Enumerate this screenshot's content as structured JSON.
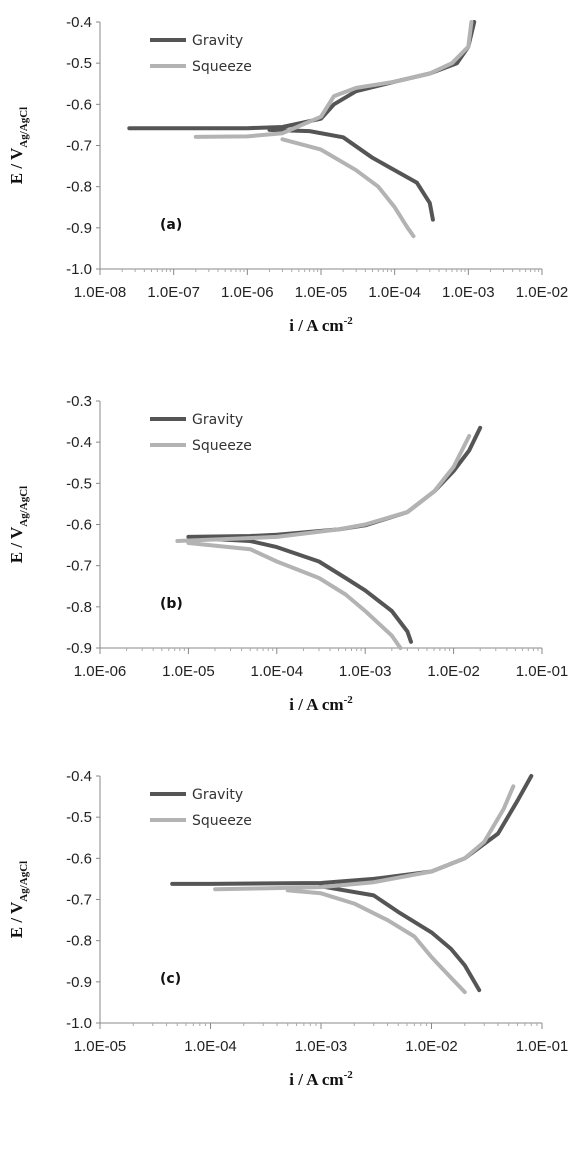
{
  "chart_data": [
    {
      "type": "line",
      "panel_label": "(a)",
      "xscale": "log",
      "xlim": [
        1e-08,
        0.01
      ],
      "ylim": [
        -1.0,
        -0.4
      ],
      "xticks": [
        "1.0E-08",
        "1.0E-07",
        "1.0E-06",
        "1.0E-05",
        "1.0E-04",
        "1.0E-03",
        "1.0E-02"
      ],
      "yticks": [
        "-0.4",
        "-0.5",
        "-0.6",
        "-0.7",
        "-0.8",
        "-0.9",
        "-1.0"
      ],
      "xlabel": {
        "main": "i / A cm",
        "sup": "-2"
      },
      "ylabel": {
        "main": "E / V",
        "sub": "Ag/AgCl"
      },
      "legend_position": "top-left",
      "series": [
        {
          "name": "Gravity",
          "color": "#555555",
          "x": [
            2.5e-08,
            1e-07,
            1e-06,
            3e-06,
            1e-05,
            1.5e-05,
            3e-05,
            0.0001,
            0.0003,
            0.0007,
            0.001,
            0.0012
          ],
          "y": [
            -0.658,
            -0.658,
            -0.658,
            -0.655,
            -0.635,
            -0.6,
            -0.568,
            -0.545,
            -0.525,
            -0.5,
            -0.46,
            -0.4
          ]
        },
        {
          "name": "",
          "color": "#555555",
          "x": [
            2e-06,
            7e-06,
            2e-05,
            5e-05,
            0.0001,
            0.0002,
            0.0003,
            0.00033
          ],
          "y": [
            -0.662,
            -0.665,
            -0.68,
            -0.73,
            -0.76,
            -0.79,
            -0.84,
            -0.88
          ]
        },
        {
          "name": "Squeeze",
          "color": "#b3b3b3",
          "x": [
            2e-07,
            1e-06,
            3e-06,
            1e-05,
            1.5e-05,
            3e-05,
            0.0001,
            0.0003,
            0.0006,
            0.001,
            0.0011
          ],
          "y": [
            -0.679,
            -0.678,
            -0.67,
            -0.63,
            -0.58,
            -0.56,
            -0.545,
            -0.525,
            -0.5,
            -0.46,
            -0.4
          ]
        },
        {
          "name": "",
          "color": "#b3b3b3",
          "x": [
            3e-06,
            1e-05,
            3e-05,
            6e-05,
            0.0001,
            0.00015,
            0.00018
          ],
          "y": [
            -0.685,
            -0.71,
            -0.76,
            -0.8,
            -0.85,
            -0.9,
            -0.92
          ]
        }
      ]
    },
    {
      "type": "line",
      "panel_label": "(b)",
      "xscale": "log",
      "xlim": [
        1e-06,
        0.1
      ],
      "ylim": [
        -0.9,
        -0.3
      ],
      "xticks": [
        "1.0E-06",
        "1.0E-05",
        "1.0E-04",
        "1.0E-03",
        "1.0E-02",
        "1.0E-01"
      ],
      "yticks": [
        "-0.3",
        "-0.4",
        "-0.5",
        "-0.6",
        "-0.7",
        "-0.8",
        "-0.9"
      ],
      "xlabel": {
        "main": "i / A cm",
        "sup": "-2"
      },
      "ylabel": {
        "main": "E / V",
        "sub": "Ag/AgCl"
      },
      "legend_position": "top-left",
      "series": [
        {
          "name": "Gravity",
          "color": "#555555",
          "x": [
            1e-05,
            5e-05,
            0.0001,
            0.0005,
            0.001,
            0.003,
            0.006,
            0.01,
            0.015,
            0.02
          ],
          "y": [
            -0.63,
            -0.628,
            -0.625,
            -0.612,
            -0.602,
            -0.57,
            -0.52,
            -0.47,
            -0.42,
            -0.365
          ]
        },
        {
          "name": "",
          "color": "#555555",
          "x": [
            1.2e-05,
            5e-05,
            0.0001,
            0.0003,
            0.0006,
            0.001,
            0.002,
            0.003,
            0.0033
          ],
          "y": [
            -0.633,
            -0.64,
            -0.655,
            -0.69,
            -0.73,
            -0.76,
            -0.81,
            -0.86,
            -0.885
          ]
        },
        {
          "name": "Squeeze",
          "color": "#b3b3b3",
          "x": [
            7.5e-06,
            3e-05,
            0.0001,
            0.0005,
            0.001,
            0.003,
            0.006,
            0.01,
            0.015
          ],
          "y": [
            -0.64,
            -0.635,
            -0.63,
            -0.612,
            -0.6,
            -0.57,
            -0.52,
            -0.46,
            -0.385
          ]
        },
        {
          "name": "",
          "color": "#b3b3b3",
          "x": [
            1e-05,
            5e-05,
            0.0001,
            0.0003,
            0.0006,
            0.001,
            0.002,
            0.0025
          ],
          "y": [
            -0.645,
            -0.66,
            -0.69,
            -0.73,
            -0.77,
            -0.81,
            -0.87,
            -0.9
          ]
        }
      ]
    },
    {
      "type": "line",
      "panel_label": "(c)",
      "xscale": "log",
      "xlim": [
        1e-05,
        0.1
      ],
      "ylim": [
        -1.0,
        -0.4
      ],
      "xticks": [
        "1.0E-05",
        "1.0E-04",
        "1.0E-03",
        "1.0E-02",
        "1.0E-01"
      ],
      "yticks": [
        "-0.4",
        "-0.5",
        "-0.6",
        "-0.7",
        "-0.8",
        "-0.9",
        "-1.0"
      ],
      "xlabel": {
        "main": "i / A cm",
        "sup": "-2"
      },
      "ylabel": {
        "main": "E / V",
        "sub": "Ag/AgCl"
      },
      "legend_position": "top-left",
      "series": [
        {
          "name": "Gravity",
          "color": "#555555",
          "x": [
            4.5e-05,
            0.0001,
            0.001,
            0.003,
            0.01,
            0.02,
            0.04,
            0.06,
            0.08
          ],
          "y": [
            -0.662,
            -0.662,
            -0.66,
            -0.65,
            -0.632,
            -0.6,
            -0.54,
            -0.46,
            -0.4
          ]
        },
        {
          "name": "",
          "color": "#555555",
          "x": [
            0.001,
            0.003,
            0.005,
            0.01,
            0.015,
            0.02,
            0.027
          ],
          "y": [
            -0.668,
            -0.69,
            -0.73,
            -0.78,
            -0.82,
            -0.86,
            -0.92
          ]
        },
        {
          "name": "Squeeze",
          "color": "#b3b3b3",
          "x": [
            0.00011,
            0.0003,
            0.001,
            0.003,
            0.01,
            0.02,
            0.03,
            0.045,
            0.055
          ],
          "y": [
            -0.675,
            -0.673,
            -0.67,
            -0.658,
            -0.632,
            -0.6,
            -0.56,
            -0.48,
            -0.425
          ]
        },
        {
          "name": "",
          "color": "#b3b3b3",
          "x": [
            0.0005,
            0.001,
            0.002,
            0.004,
            0.007,
            0.01,
            0.015,
            0.02
          ],
          "y": [
            -0.678,
            -0.685,
            -0.71,
            -0.75,
            -0.79,
            -0.84,
            -0.89,
            -0.925
          ]
        }
      ]
    }
  ]
}
